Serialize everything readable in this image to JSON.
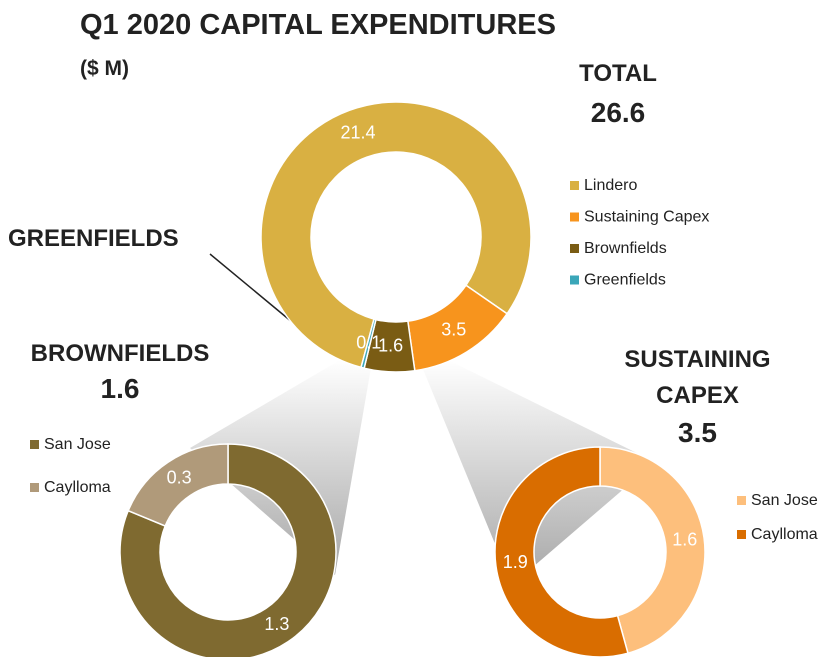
{
  "title": "Q1 2020 CAPITAL EXPENDITURES",
  "subtitle": "($ M)",
  "chart_data": [
    {
      "type": "donut",
      "label": "TOTAL",
      "total": 26.6,
      "categories": [
        "Lindero",
        "Sustaining Capex",
        "Brownfields",
        "Greenfields"
      ],
      "values": [
        21.4,
        3.5,
        1.6,
        0.1
      ],
      "colors": [
        "#d9b042",
        "#f7941d",
        "#7a5c14",
        "#3aa6b8"
      ],
      "annotation": "GREENFIELDS"
    },
    {
      "type": "donut",
      "label": "BROWNFIELDS",
      "total": 1.6,
      "categories": [
        "San Jose",
        "Caylloma"
      ],
      "values": [
        1.3,
        0.3
      ],
      "colors": [
        "#7f6a30",
        "#b09a7a"
      ]
    },
    {
      "type": "donut",
      "label": "SUSTAINING CAPEX",
      "total": 3.5,
      "categories": [
        "San Jose",
        "Caylloma"
      ],
      "values": [
        1.6,
        1.9
      ],
      "colors": [
        "#fdbf7c",
        "#d96d00"
      ]
    }
  ]
}
